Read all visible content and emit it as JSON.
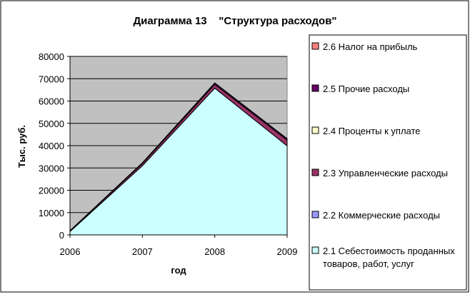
{
  "chart_data": {
    "type": "area",
    "stacked": true,
    "title": "Диаграмма 13    \"Структура расходов\"",
    "xlabel": "год",
    "ylabel": "Тыс. руб.",
    "categories": [
      "2006",
      "2007",
      "2008",
      "2009"
    ],
    "ylim": [
      0,
      80000
    ],
    "yticks": [
      0,
      10000,
      20000,
      30000,
      40000,
      50000,
      60000,
      70000,
      80000
    ],
    "grid": true,
    "legend_position": "right",
    "plot_background": "#c0c0c0",
    "series": [
      {
        "name": "2.1 Себестоимость проданных товаров, работ, услуг",
        "color": "#ccffff",
        "values": [
          1500,
          31000,
          65800,
          39900
        ]
      },
      {
        "name": "2.2 Коммерческие расходы",
        "color": "#9999ff",
        "values": [
          0,
          0,
          0,
          0
        ]
      },
      {
        "name": "2.3 Управленческие расходы",
        "color": "#993366",
        "values": [
          300,
          1000,
          1700,
          2600
        ]
      },
      {
        "name": "2.4 Проценты к уплате",
        "color": "#ffffcc",
        "values": [
          0,
          0,
          0,
          0
        ]
      },
      {
        "name": "2.5 Прочие расходы",
        "color": "#660066",
        "values": [
          100,
          300,
          600,
          600
        ]
      },
      {
        "name": "2.6 Налог на прибыль",
        "color": "#ff8080",
        "values": [
          0,
          0,
          0,
          0
        ]
      }
    ]
  }
}
